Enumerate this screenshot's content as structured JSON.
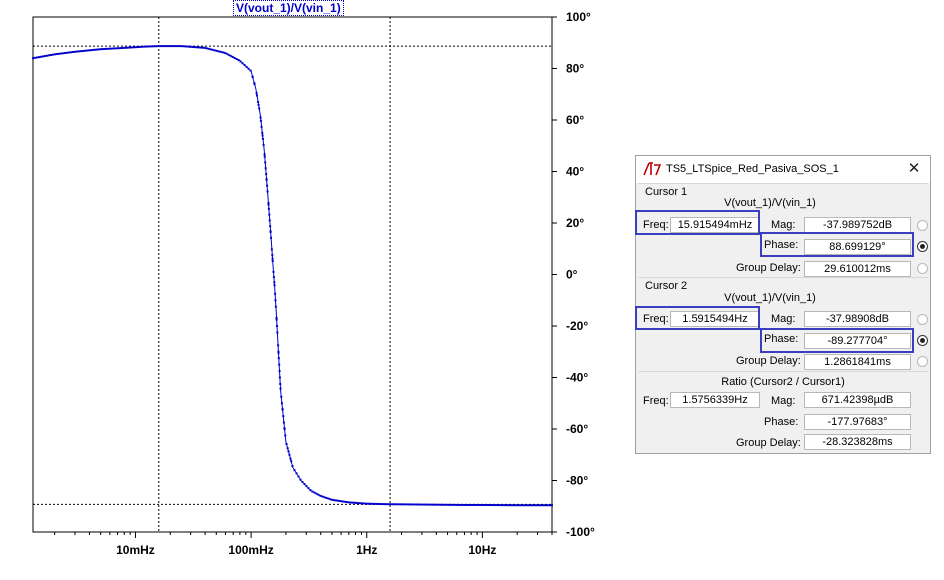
{
  "trace_title": "V(vout_1)/V(vin_1)",
  "chart_data": {
    "type": "line",
    "title": "V(vout_1)/V(vin_1)",
    "x_scale": "log",
    "xlim_hz": [
      0.0013,
      40
    ],
    "ylim": [
      -100,
      100
    ],
    "x_ticks": [
      {
        "value": 0.01,
        "label": "10mHz"
      },
      {
        "value": 0.1,
        "label": "100mHz"
      },
      {
        "value": 1,
        "label": "1Hz"
      },
      {
        "value": 10,
        "label": "10Hz"
      }
    ],
    "y_ticks": [
      {
        "value": 100,
        "label": "100°"
      },
      {
        "value": 80,
        "label": "80°"
      },
      {
        "value": 60,
        "label": "60°"
      },
      {
        "value": 40,
        "label": "40°"
      },
      {
        "value": 20,
        "label": "20°"
      },
      {
        "value": 0,
        "label": "0°"
      },
      {
        "value": -20,
        "label": "-20°"
      },
      {
        "value": -40,
        "label": "-40°"
      },
      {
        "value": -60,
        "label": "-60°"
      },
      {
        "value": -80,
        "label": "-80°"
      },
      {
        "value": -100,
        "label": "-100°"
      }
    ],
    "series": [
      {
        "color": "#0000cc",
        "x": [
          0.0013,
          0.002,
          0.003,
          0.005,
          0.008,
          0.012,
          0.016,
          0.025,
          0.04,
          0.06,
          0.08,
          0.1,
          0.11,
          0.12,
          0.13,
          0.14,
          0.15,
          0.155,
          0.16,
          0.165,
          0.17,
          0.18,
          0.2,
          0.23,
          0.27,
          0.33,
          0.4,
          0.5,
          0.7,
          1,
          1.5,
          2.5,
          4,
          7,
          10,
          20,
          40
        ],
        "y": [
          84,
          85.5,
          86.5,
          87.5,
          88,
          88.5,
          88.7,
          88.7,
          88,
          86,
          83,
          79,
          72,
          62,
          48,
          30,
          12,
          3,
          -5,
          -15,
          -25,
          -45,
          -65,
          -75,
          -80,
          -84,
          -86,
          -87.5,
          -88.5,
          -89,
          -89.2,
          -89.3,
          -89.4,
          -89.5,
          -89.5,
          -89.6,
          -89.6
        ]
      }
    ],
    "cursors": [
      {
        "freq_hz": 0.015915494,
        "value": 88.699129
      },
      {
        "freq_hz": 1.5915494,
        "value": -89.277704
      }
    ],
    "grid": false
  },
  "dialog": {
    "title": "TS5_LTSpice_Red_Pasiva_SOS_1",
    "cursor1": {
      "label": "Cursor 1",
      "trace": "V(vout_1)/V(vin_1)",
      "freq_label": "Freq:",
      "freq": "15.915494mHz",
      "mag_label": "Mag:",
      "mag": "-37.989752dB",
      "phase_label": "Phase:",
      "phase": "88.699129°",
      "gd_label": "Group Delay:",
      "gd": "29.610012ms",
      "selected_radio": "phase"
    },
    "cursor2": {
      "label": "Cursor 2",
      "trace": "V(vout_1)/V(vin_1)",
      "freq_label": "Freq:",
      "freq": "1.5915494Hz",
      "mag_label": "Mag:",
      "mag": "-37.98908dB",
      "phase_label": "Phase:",
      "phase": "-89.277704°",
      "gd_label": "Group Delay:",
      "gd": "1.2861841ms",
      "selected_radio": "phase"
    },
    "ratio": {
      "label": "Ratio (Cursor2 / Cursor1)",
      "freq_label": "Freq:",
      "freq": "1.5756339Hz",
      "mag_label": "Mag:",
      "mag": "671.42398µdB",
      "phase_label": "Phase:",
      "phase": "-177.97683°",
      "gd_label": "Group Delay:",
      "gd": "-28.323828ms"
    },
    "highlight_color": "#3a3fc0"
  }
}
